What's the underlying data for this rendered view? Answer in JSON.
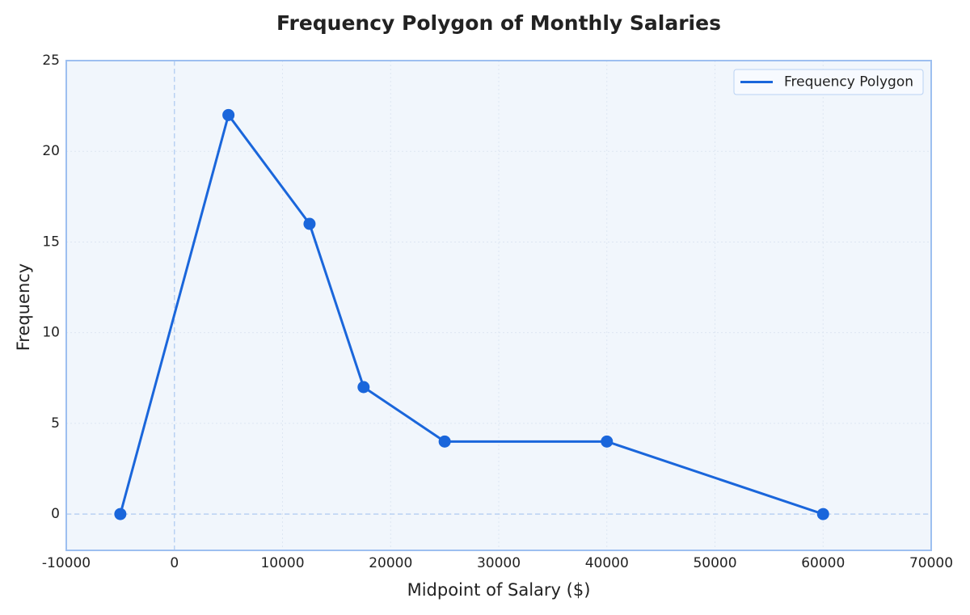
{
  "chart_data": {
    "type": "line",
    "title": "Frequency Polygon of Monthly Salaries",
    "x_label": "Midpoint of Salary ($)",
    "y_label": "Frequency",
    "x": [
      -5000,
      5000,
      12500,
      17500,
      25000,
      40000,
      60000
    ],
    "series": [
      {
        "name": "Frequency Polygon",
        "color": "#1a66db",
        "values": [
          0,
          22,
          16,
          7,
          4,
          4,
          0
        ]
      }
    ],
    "xlim": [
      -10000,
      70000
    ],
    "xticks": [
      -10000,
      0,
      10000,
      20000,
      30000,
      40000,
      50000,
      60000,
      70000
    ],
    "ylim": [
      -2,
      25
    ],
    "yticks": [
      0,
      5,
      10,
      15,
      20,
      25
    ],
    "grid": true,
    "zero_lines": true,
    "legend": "upper right"
  }
}
